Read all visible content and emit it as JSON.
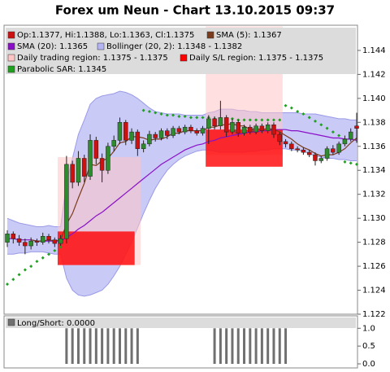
{
  "chart_data": {
    "type": "candlestick",
    "title": "Forex um Neun - Chart 13.10.2015 09:37",
    "ylim": [
      1.122,
      1.1461
    ],
    "yticks": [
      1.122,
      1.124,
      1.126,
      1.128,
      {
        "value": 1.13,
        "label": "1.130"
      },
      1.132,
      1.134,
      1.136,
      1.138,
      {
        "value": 1.14,
        "label": "1.140"
      },
      1.142,
      1.144
    ],
    "candles": {
      "name": "Op:1.1377, Hi:1.1388, Lo:1.1363, Cl:1.1375",
      "up_color": "#2e8b2e",
      "down_color": "#cc1111",
      "open": [
        1.128,
        1.1287,
        1.1283,
        1.128,
        1.1277,
        1.1281,
        1.128,
        1.1285,
        1.1282,
        1.1279,
        1.1283,
        1.1345,
        1.133,
        1.135,
        1.1335,
        1.1365,
        1.135,
        1.134,
        1.136,
        1.1365,
        1.138,
        1.1365,
        1.1372,
        1.1358,
        1.1362,
        1.137,
        1.1367,
        1.1373,
        1.1369,
        1.1375,
        1.1372,
        1.1376,
        1.1373,
        1.1371,
        1.1375,
        1.1383,
        1.1377,
        1.1384,
        1.1372,
        1.138,
        1.1371,
        1.1376,
        1.1372,
        1.1377,
        1.1373,
        1.1378,
        1.137,
        1.1364,
        1.1362,
        1.1358,
        1.1357,
        1.1355,
        1.1353,
        1.1348,
        1.135,
        1.1358,
        1.1355,
        1.1362,
        1.1366,
        1.1377
      ],
      "high": [
        1.129,
        1.1289,
        1.1286,
        1.1283,
        1.1284,
        1.1283,
        1.1288,
        1.1287,
        1.1284,
        1.1286,
        1.1352,
        1.1348,
        1.1356,
        1.1353,
        1.137,
        1.1368,
        1.1354,
        1.1363,
        1.1369,
        1.1384,
        1.1382,
        1.1375,
        1.1374,
        1.1365,
        1.1373,
        1.1372,
        1.1375,
        1.1375,
        1.1377,
        1.1377,
        1.1378,
        1.1378,
        1.1375,
        1.1377,
        1.1386,
        1.1385,
        1.1398,
        1.1386,
        1.1383,
        1.1382,
        1.1378,
        1.1378,
        1.1379,
        1.1379,
        1.138,
        1.138,
        1.1372,
        1.1366,
        1.1364,
        1.136,
        1.1359,
        1.1357,
        1.1355,
        1.1352,
        1.136,
        1.1361,
        1.1364,
        1.1369,
        1.1375,
        1.1388
      ],
      "low": [
        1.1276,
        1.1279,
        1.1277,
        1.127,
        1.1274,
        1.1277,
        1.1278,
        1.1279,
        1.1276,
        1.1277,
        1.1279,
        1.1325,
        1.1327,
        1.133,
        1.1332,
        1.1345,
        1.133,
        1.1337,
        1.1356,
        1.1362,
        1.1361,
        1.1362,
        1.1352,
        1.1355,
        1.136,
        1.1364,
        1.1365,
        1.1366,
        1.1367,
        1.137,
        1.137,
        1.1371,
        1.1369,
        1.1369,
        1.1362,
        1.1374,
        1.1374,
        1.1368,
        1.137,
        1.1368,
        1.1369,
        1.137,
        1.137,
        1.1371,
        1.1371,
        1.1367,
        1.1361,
        1.1359,
        1.1356,
        1.1355,
        1.1353,
        1.1351,
        1.1344,
        1.1346,
        1.1348,
        1.1353,
        1.1353,
        1.136,
        1.1364,
        1.1363
      ],
      "close": [
        1.1287,
        1.1283,
        1.128,
        1.1277,
        1.1281,
        1.128,
        1.1285,
        1.1282,
        1.1279,
        1.1283,
        1.1345,
        1.133,
        1.135,
        1.1335,
        1.1365,
        1.135,
        1.134,
        1.136,
        1.1365,
        1.138,
        1.1365,
        1.1372,
        1.1358,
        1.1362,
        1.137,
        1.1367,
        1.1373,
        1.1369,
        1.1375,
        1.1372,
        1.1376,
        1.1373,
        1.1371,
        1.1375,
        1.1383,
        1.1377,
        1.1384,
        1.1372,
        1.138,
        1.1371,
        1.1376,
        1.1372,
        1.1377,
        1.1373,
        1.1378,
        1.137,
        1.1364,
        1.1362,
        1.1358,
        1.1357,
        1.1355,
        1.1353,
        1.1348,
        1.135,
        1.1358,
        1.1355,
        1.1362,
        1.1366,
        1.1372,
        1.1375
      ]
    },
    "sma5": {
      "name": "SMA (5): 1.1367",
      "color": "#7a3c1c",
      "values": [
        null,
        null,
        null,
        null,
        1.1282,
        1.1281,
        1.1281,
        1.1282,
        1.1281,
        1.1282,
        1.1295,
        1.1304,
        1.1317,
        1.1329,
        1.1345,
        1.1344,
        1.1348,
        1.135,
        1.1356,
        1.1363,
        1.1364,
        1.1368,
        1.1368,
        1.1367,
        1.1365,
        1.1366,
        1.1366,
        1.1368,
        1.1371,
        1.1371,
        1.1373,
        1.1373,
        1.1373,
        1.1373,
        1.1376,
        1.1376,
        1.1378,
        1.1378,
        1.1379,
        1.1377,
        1.1377,
        1.1374,
        1.1375,
        1.1374,
        1.1375,
        1.1374,
        1.1372,
        1.1369,
        1.1366,
        1.1362,
        1.1359,
        1.1357,
        1.1354,
        1.1352,
        1.1353,
        1.1353,
        1.1355,
        1.1358,
        1.1363,
        1.1367
      ]
    },
    "sma20": {
      "name": "SMA (20): 1.1365",
      "color": "#8a10c8",
      "values": [
        1.1283,
        1.1283,
        1.1282,
        1.1282,
        1.1282,
        1.1281,
        1.1281,
        1.1281,
        1.1281,
        1.1281,
        1.1284,
        1.1287,
        1.1291,
        1.1294,
        1.1298,
        1.1302,
        1.1305,
        1.1309,
        1.1313,
        1.1317,
        1.1321,
        1.1325,
        1.1329,
        1.1333,
        1.1337,
        1.1341,
        1.1345,
        1.1348,
        1.1351,
        1.1354,
        1.1357,
        1.1359,
        1.1361,
        1.1362,
        1.1364,
        1.1365,
        1.1367,
        1.1368,
        1.1369,
        1.137,
        1.1371,
        1.1372,
        1.1372,
        1.1373,
        1.1373,
        1.1374,
        1.1374,
        1.1374,
        1.1373,
        1.1373,
        1.1372,
        1.1371,
        1.137,
        1.1369,
        1.1368,
        1.1367,
        1.1367,
        1.1366,
        1.1366,
        1.1365
      ]
    },
    "bollinger": {
      "name": "Bollinger (20, 2): 1.1348 - 1.1382",
      "color": "#b4b4f4",
      "edge_color": "#9a9ae8",
      "upper": [
        1.13,
        1.1298,
        1.1296,
        1.1295,
        1.1294,
        1.1293,
        1.1293,
        1.1294,
        1.1293,
        1.1293,
        1.133,
        1.135,
        1.137,
        1.1382,
        1.1395,
        1.14,
        1.1402,
        1.1403,
        1.1404,
        1.1406,
        1.1405,
        1.1403,
        1.14,
        1.1396,
        1.1392,
        1.1389,
        1.1388,
        1.1387,
        1.1387,
        1.1387,
        1.1386,
        1.1386,
        1.1386,
        1.1386,
        1.1388,
        1.1389,
        1.1391,
        1.1391,
        1.1391,
        1.139,
        1.139,
        1.1389,
        1.1389,
        1.1388,
        1.1388,
        1.1388,
        1.1388,
        1.1388,
        1.1388,
        1.1388,
        1.1387,
        1.1387,
        1.1387,
        1.1386,
        1.1385,
        1.1384,
        1.1383,
        1.1383,
        1.1382,
        1.1382
      ],
      "lower": [
        1.127,
        1.127,
        1.1271,
        1.1271,
        1.1272,
        1.1272,
        1.1272,
        1.1271,
        1.127,
        1.127,
        1.125,
        1.124,
        1.1236,
        1.1235,
        1.1236,
        1.1238,
        1.124,
        1.1245,
        1.1252,
        1.126,
        1.127,
        1.128,
        1.1292,
        1.1304,
        1.1315,
        1.1325,
        1.1333,
        1.134,
        1.1345,
        1.1349,
        1.1352,
        1.1354,
        1.1356,
        1.1357,
        1.1357,
        1.1356,
        1.1355,
        1.1355,
        1.1355,
        1.1355,
        1.1355,
        1.1356,
        1.1356,
        1.1357,
        1.1357,
        1.1358,
        1.1358,
        1.1358,
        1.1357,
        1.1357,
        1.1356,
        1.1354,
        1.1352,
        1.1351,
        1.135,
        1.135,
        1.1349,
        1.1349,
        1.1348,
        1.1348
      ]
    },
    "trading_region": {
      "name": "Daily trading region: 1.1375 - 1.1375",
      "color": "#ffc4c4",
      "regions": [
        {
          "from": 9,
          "to": 22,
          "low": 1.1261,
          "high": 1.1351
        },
        {
          "from": 34,
          "to": 46,
          "low": 1.1353,
          "high": 1.146
        }
      ]
    },
    "sl_region": {
      "name": "Daily S/L region: 1.1375 - 1.1375",
      "color": "#ff0000",
      "regions": [
        {
          "from": 9,
          "to": 21,
          "low": 1.1261,
          "high": 1.1289
        },
        {
          "from": 34,
          "to": 46,
          "low": 1.1343,
          "high": 1.1374
        }
      ]
    },
    "sar": {
      "name": "Parabolic SAR: 1.1345",
      "color": "#1fa01f",
      "values": [
        1.1245,
        1.1249,
        1.1253,
        1.1257,
        1.126,
        1.1264,
        1.1267,
        1.127,
        1.1273,
        1.1276,
        null,
        null,
        null,
        null,
        null,
        null,
        null,
        null,
        null,
        null,
        null,
        null,
        null,
        1.139,
        1.1389,
        1.1388,
        1.1387,
        1.1386,
        1.1386,
        1.1385,
        1.1385,
        1.1384,
        1.1384,
        1.1384,
        1.1384,
        1.1383,
        1.1383,
        1.1383,
        1.1383,
        1.1382,
        1.1382,
        1.1382,
        1.1382,
        1.1382,
        1.1382,
        1.1382,
        1.1382,
        1.1394,
        1.1392,
        1.1389,
        1.1387,
        1.1384,
        1.1381,
        1.1378,
        1.1375,
        1.1372,
        1.1369,
        1.1347,
        1.1346,
        1.1345
      ]
    },
    "long_short": {
      "name": "Long/Short: 0.0000",
      "color": "#707070",
      "ylim": [
        0,
        1.35
      ],
      "yticks": [
        {
          "value": 0,
          "label": "0.0"
        },
        0.5,
        {
          "value": 1,
          "label": "1.0"
        }
      ],
      "values": [
        0,
        0,
        0,
        0,
        0,
        0,
        0,
        0,
        0,
        0,
        1,
        1,
        1,
        1,
        1,
        1,
        1,
        1,
        1,
        1,
        1,
        1,
        1,
        0,
        0,
        0,
        0,
        0,
        0,
        0,
        0,
        0,
        0,
        0,
        0,
        1,
        1,
        1,
        1,
        1,
        1,
        1,
        1,
        1,
        1,
        1,
        1,
        1,
        0,
        0,
        0,
        0,
        0,
        0,
        0,
        0,
        0,
        0,
        0,
        0
      ]
    }
  }
}
